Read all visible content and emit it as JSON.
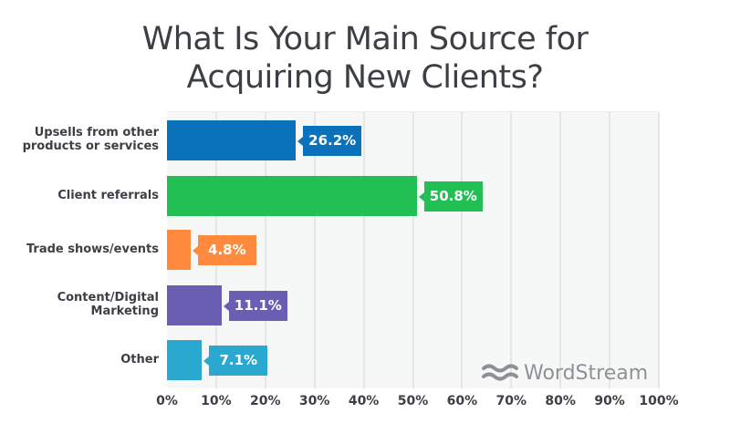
{
  "chart_data": {
    "type": "bar",
    "orientation": "horizontal",
    "title": "What Is Your Main Source for Acquiring New Clients?",
    "title_lines": [
      "What Is Your Main Source for",
      "Acquiring New Clients?"
    ],
    "categories": [
      "Upsells from other products or services",
      "Client referrals",
      "Trade shows/events",
      "Content/Digital Marketing",
      "Other"
    ],
    "category_lines": [
      [
        "Upsells from other",
        "products or services"
      ],
      [
        "Client referrals"
      ],
      [
        "Trade shows/events"
      ],
      [
        "Content/Digital",
        "Marketing"
      ],
      [
        "Other"
      ]
    ],
    "values": [
      26.2,
      50.8,
      4.8,
      11.1,
      7.1
    ],
    "value_labels": [
      "26.2%",
      "50.8%",
      "4.8%",
      "11.1%",
      "7.1%"
    ],
    "colors": [
      "#0a72ba",
      "#22bf55",
      "#ff8a3d",
      "#6a5eb2",
      "#2aa8cf"
    ],
    "xlabel": "",
    "ylabel": "",
    "xlim": [
      0,
      100
    ],
    "x_ticks": [
      "0%",
      "10%",
      "20%",
      "30%",
      "40%",
      "50%",
      "60%",
      "70%",
      "80%",
      "90%",
      "100%"
    ],
    "grid": true,
    "legend": null
  },
  "branding": {
    "logo_text": "WordStream",
    "logo_icon": "wave-icon",
    "logo_color": "#8e9194"
  }
}
